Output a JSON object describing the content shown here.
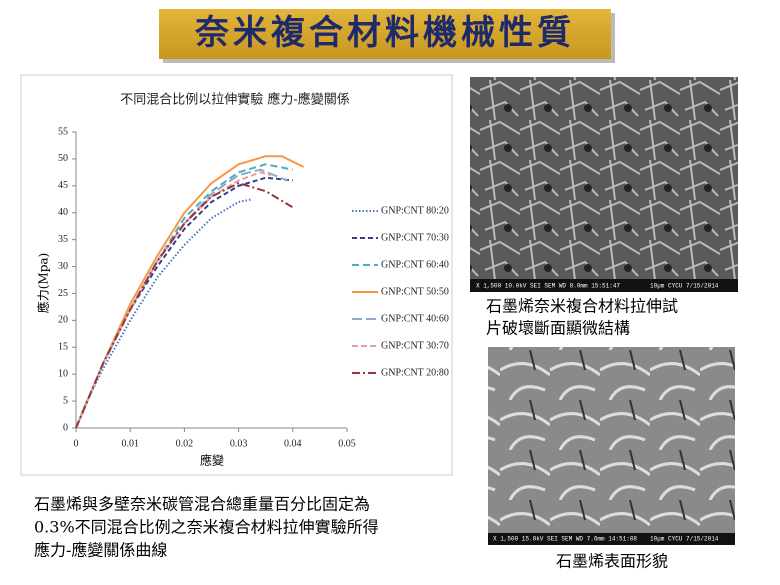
{
  "header": {
    "title": "奈米複合材料機械性質"
  },
  "chart_data": {
    "type": "line",
    "title": "不同混合比例以拉伸實驗 應力-應變關係",
    "xlabel": "應變",
    "ylabel": "應力(Mpa)",
    "xlim": [
      0,
      0.05
    ],
    "xticks": [
      0,
      0.01,
      0.02,
      0.03,
      0.04,
      0.05
    ],
    "ylim": [
      0,
      55
    ],
    "yticks": [
      0,
      5,
      10,
      15,
      20,
      25,
      30,
      35,
      40,
      45,
      50,
      55
    ],
    "grid": false,
    "legend": "right",
    "series": [
      {
        "name": "GNP:CNT 80:20",
        "color": "#4472c4",
        "dash": "1.5,2",
        "x": [
          0,
          0.002,
          0.005,
          0.01,
          0.015,
          0.02,
          0.025,
          0.03,
          0.0325
        ],
        "values": [
          0,
          5,
          11,
          20,
          28,
          34,
          39,
          42,
          42.5
        ]
      },
      {
        "name": "GNP:CNT 70:30",
        "color": "#403a8c",
        "dash": "5,3",
        "x": [
          0,
          0.005,
          0.01,
          0.015,
          0.02,
          0.025,
          0.03,
          0.035,
          0.04
        ],
        "values": [
          0,
          12,
          22,
          30,
          37,
          42,
          45,
          46.5,
          46
        ]
      },
      {
        "name": "GNP:CNT 60:40",
        "color": "#4bacc6",
        "dash": "7,4",
        "x": [
          0,
          0.005,
          0.01,
          0.015,
          0.02,
          0.025,
          0.03,
          0.035,
          0.04
        ],
        "values": [
          0,
          12,
          22,
          31,
          39,
          44,
          47.5,
          49,
          48
        ]
      },
      {
        "name": "GNP:CNT 50:50",
        "color": "#f79646",
        "dash": "",
        "x": [
          0,
          0.005,
          0.01,
          0.015,
          0.02,
          0.025,
          0.03,
          0.035,
          0.038,
          0.042
        ],
        "values": [
          0,
          12,
          23,
          32,
          40,
          45.5,
          49,
          50.5,
          50.5,
          48.5
        ]
      },
      {
        "name": "GNP:CNT 40:60",
        "color": "#8ea9c9",
        "dash": "10,4",
        "x": [
          0,
          0.005,
          0.01,
          0.015,
          0.02,
          0.025,
          0.03,
          0.034,
          0.039
        ],
        "values": [
          0,
          12,
          22,
          31,
          38,
          43.5,
          47,
          48,
          46
        ]
      },
      {
        "name": "GNP:CNT 30:70",
        "color": "#e6a0a0",
        "dash": "6,3",
        "x": [
          0,
          0.005,
          0.01,
          0.015,
          0.02,
          0.025,
          0.03,
          0.034,
          0.036
        ],
        "values": [
          0,
          12,
          22,
          31,
          38,
          43,
          46,
          47.5,
          47
        ]
      },
      {
        "name": "GNP:CNT 20:80",
        "color": "#943634",
        "dash": "8,3,2,3",
        "x": [
          0,
          0.005,
          0.01,
          0.015,
          0.02,
          0.025,
          0.03,
          0.035,
          0.04
        ],
        "values": [
          0,
          12,
          22,
          31,
          38,
          43,
          45.5,
          44,
          41
        ]
      }
    ]
  },
  "images": [
    {
      "info": [
        "X 1,500  10.0kV  SEI  SEM  WD 8.0mm  15:51:47",
        "10μm  CYCU  7/15/2014"
      ],
      "caption": [
        "石墨烯奈米複合材料拉伸試",
        "片破壞斷面顯微結構"
      ]
    },
    {
      "info": [
        "X 1,500  15.0kV  SEI  SEM  WD 7.6mm  14:51:08",
        "10μm  CYCU  7/15/2014"
      ],
      "caption": [
        "石墨烯表面形貌"
      ]
    }
  ],
  "description": [
    "石墨烯與多壁奈米碳管混合總重量百分比固定為",
    "0.3%不同混合比例之奈米複合材料拉伸實驗所得",
    "應力-應變關係曲線"
  ]
}
